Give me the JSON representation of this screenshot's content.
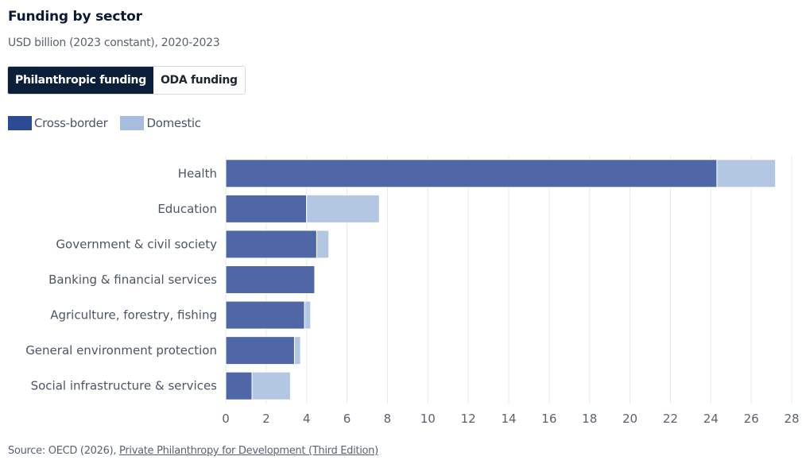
{
  "header": {
    "title": "Funding by sector",
    "subtitle": "USD billion (2023 constant), 2020-2023"
  },
  "toggle": {
    "options": [
      {
        "label": "Philanthropic funding",
        "active": true
      },
      {
        "label": "ODA funding",
        "active": false
      }
    ]
  },
  "legend": {
    "items": [
      {
        "label": "Cross-border",
        "color": "#2d4a94"
      },
      {
        "label": "Domestic",
        "color": "#a7bde0"
      }
    ]
  },
  "source": {
    "prefix": "Source: OECD (2026), ",
    "link_text": "Private Philanthropy for Development (Third Edition)"
  },
  "chart_data": {
    "type": "bar",
    "orientation": "horizontal",
    "stacked": true,
    "title": "Funding by sector",
    "subtitle": "USD billion (2023 constant), 2020-2023",
    "xlabel": "",
    "ylabel": "",
    "xlim": [
      0,
      28
    ],
    "xticks": [
      0,
      2,
      4,
      6,
      8,
      10,
      12,
      14,
      16,
      18,
      20,
      22,
      24,
      26,
      28
    ],
    "grid": true,
    "legend_position": "top-left",
    "categories": [
      "Health",
      "Education",
      "Government & civil society",
      "Banking & financial services",
      "Agriculture, forestry, fishing",
      "General environment protection",
      "Social infrastructure & services"
    ],
    "series": [
      {
        "name": "Cross-border",
        "color": "#4f67a6",
        "values": [
          24.3,
          4.0,
          4.5,
          4.4,
          3.9,
          3.4,
          1.3
        ]
      },
      {
        "name": "Domestic",
        "color": "#b3c7e3",
        "values": [
          2.9,
          3.6,
          0.6,
          0.0,
          0.3,
          0.3,
          1.9
        ]
      }
    ]
  }
}
